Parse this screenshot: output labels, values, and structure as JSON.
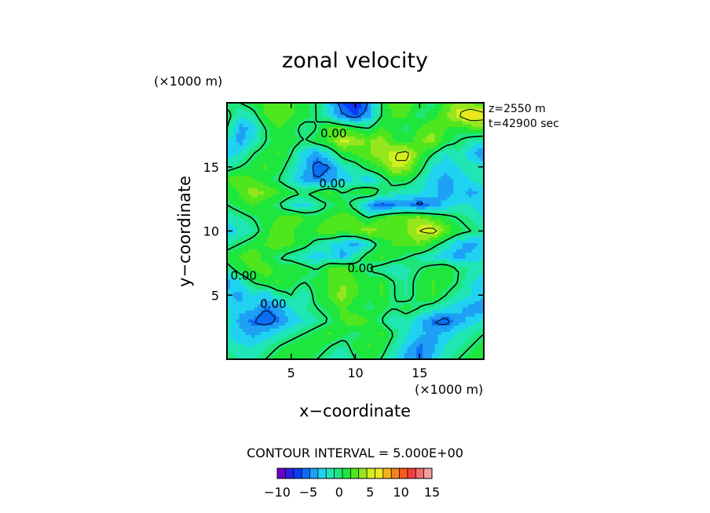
{
  "chart_data": {
    "type": "heatmap",
    "title": "zonal velocity",
    "xlabel": "x−coordinate",
    "ylabel": "y−coordinate",
    "x_unit": "(×1000 m)",
    "y_unit": "(×1000 m)",
    "xlim": [
      0,
      20
    ],
    "ylim": [
      0,
      20
    ],
    "x_ticks": [
      "5",
      "10",
      "15"
    ],
    "x_tick_values": [
      5,
      10,
      15
    ],
    "y_ticks": [
      "5",
      "10",
      "15"
    ],
    "y_tick_values": [
      5,
      10,
      15
    ],
    "annotations": [
      "z=2550 m",
      "t=42900 sec"
    ],
    "contour_interval": "CONTOUR INTERVAL = 5.000E+00",
    "contour_labels": [
      {
        "text": "0.00",
        "x": 8.3,
        "y": 17.3
      },
      {
        "text": "0.00",
        "x": 8.2,
        "y": 13.4
      },
      {
        "text": "0.00",
        "x": 1.3,
        "y": 6.2
      },
      {
        "text": "0.00",
        "x": 3.6,
        "y": 4.0
      },
      {
        "text": "0.00",
        "x": 10.4,
        "y": 6.8
      }
    ],
    "colorbar": {
      "tick_labels": [
        "−10",
        "−5",
        "0",
        "5",
        "10",
        "15"
      ],
      "tick_values": [
        -10,
        -5,
        0,
        5,
        10,
        15
      ],
      "range": [
        -10,
        15
      ],
      "colors": [
        "#6a00c8",
        "#2a1ee6",
        "#0a3cf5",
        "#0a6ef5",
        "#1fa0f5",
        "#1fd2f0",
        "#1fe6b4",
        "#1ee678",
        "#1ee63c",
        "#50e61e",
        "#96e61e",
        "#d2f01e",
        "#f0e61e",
        "#f5b41e",
        "#f5821e",
        "#f55a1e",
        "#f53c3c",
        "#f56e6e",
        "#f5a0a0"
      ]
    },
    "grid": false,
    "field": {
      "nx": 21,
      "ny": 21,
      "x_range": [
        0,
        20
      ],
      "y_range": [
        0,
        20
      ],
      "rows_top_to_bottom": [
        [
          -1,
          0,
          1,
          2,
          3,
          2,
          1,
          0,
          -3,
          -6,
          -8,
          -5,
          0,
          3,
          3,
          1,
          0,
          2,
          4,
          3,
          2
        ],
        [
          1,
          -2,
          -1,
          2,
          3,
          2,
          1,
          0,
          -2,
          -5,
          -6,
          -4,
          0,
          2,
          2,
          0,
          1,
          3,
          5,
          7,
          6
        ],
        [
          0,
          -4,
          -3,
          0,
          2,
          1,
          -1,
          0,
          2,
          2,
          1,
          0,
          2,
          1,
          0,
          2,
          3,
          2,
          1,
          2,
          3
        ],
        [
          -2,
          -4,
          -2,
          0,
          1,
          1,
          0,
          1,
          2,
          5,
          4,
          3,
          4,
          2,
          1,
          3,
          4,
          1,
          0,
          -1,
          -2
        ],
        [
          -3,
          -2,
          0,
          1,
          2,
          0,
          -3,
          -4,
          -2,
          1,
          2,
          3,
          4,
          5,
          6,
          2,
          0,
          -2,
          -1,
          -3,
          -5
        ],
        [
          -1,
          0,
          1,
          2,
          1,
          -1,
          -3,
          -6,
          -5,
          -2,
          -1,
          1,
          2,
          5,
          4,
          1,
          -2,
          -3,
          -2,
          -1,
          -2
        ],
        [
          2,
          3,
          2,
          1,
          0,
          -2,
          -4,
          -5,
          -4,
          -3,
          -2,
          -3,
          -1,
          1,
          1,
          -1,
          -3,
          -4,
          -3,
          -2,
          -1
        ],
        [
          1,
          2,
          4,
          3,
          2,
          1,
          0,
          1,
          2,
          0,
          1,
          2,
          0,
          -1,
          -2,
          -2,
          -3,
          -4,
          -3,
          -4,
          -3
        ],
        [
          0,
          1,
          2,
          1,
          0,
          -2,
          -3,
          -1,
          0,
          1,
          -1,
          -4,
          -6,
          -5,
          -4,
          -6,
          -4,
          -3,
          -2,
          -2,
          -3
        ],
        [
          -2,
          -1,
          0,
          1,
          2,
          3,
          2,
          1,
          2,
          3,
          2,
          0,
          2,
          3,
          3,
          4,
          2,
          1,
          0,
          -1,
          -2
        ],
        [
          -3,
          -2,
          -1,
          1,
          3,
          2,
          1,
          2,
          3,
          2,
          3,
          4,
          3,
          2,
          3,
          5,
          6,
          3,
          1,
          0,
          -1
        ],
        [
          -1,
          0,
          1,
          2,
          3,
          2,
          1,
          -1,
          -2,
          -3,
          -4,
          -2,
          1,
          2,
          2,
          3,
          1,
          -1,
          -3,
          -4,
          -3
        ],
        [
          1,
          2,
          3,
          1,
          0,
          -1,
          -2,
          -3,
          -2,
          -4,
          -1,
          1,
          2,
          1,
          0,
          -1,
          -2,
          -3,
          -4,
          -3,
          -2
        ],
        [
          -1,
          1,
          2,
          3,
          1,
          2,
          1,
          0,
          2,
          3,
          1,
          0,
          -1,
          -2,
          -1,
          0,
          1,
          2,
          0,
          -1,
          -2
        ],
        [
          -4,
          -2,
          0,
          1,
          2,
          1,
          0,
          1,
          2,
          3,
          2,
          1,
          2,
          0,
          -1,
          1,
          2,
          1,
          0,
          -2,
          -3
        ],
        [
          -3,
          -4,
          -2,
          -3,
          -1,
          0,
          -2,
          1,
          2,
          4,
          2,
          1,
          2,
          0,
          -1,
          1,
          2,
          0,
          -1,
          -2,
          -3
        ],
        [
          -2,
          -3,
          -3,
          -5,
          -4,
          -2,
          -1,
          0,
          1,
          2,
          1,
          0,
          1,
          0,
          1,
          0,
          -1,
          -2,
          -3,
          -4,
          -5
        ],
        [
          -1,
          -4,
          -5,
          -6,
          -5,
          -3,
          -2,
          -1,
          0,
          2,
          3,
          2,
          0,
          -2,
          -1,
          -3,
          -5,
          -6,
          -4,
          -3,
          -2
        ],
        [
          -2,
          -3,
          -4,
          -3,
          -2,
          -1,
          0,
          1,
          2,
          1,
          0,
          1,
          2,
          0,
          -2,
          -3,
          -4,
          -3,
          -2,
          -1,
          0
        ],
        [
          -1,
          -2,
          -2,
          -1,
          0,
          1,
          2,
          1,
          0,
          -1,
          1,
          2,
          1,
          -1,
          -3,
          -5,
          -4,
          -2,
          -1,
          0,
          1
        ],
        [
          0,
          -1,
          -1,
          0,
          1,
          2,
          1,
          0,
          -1,
          -2,
          0,
          1,
          0,
          -2,
          -4,
          -5,
          -3,
          -1,
          0,
          1,
          2
        ]
      ]
    }
  }
}
